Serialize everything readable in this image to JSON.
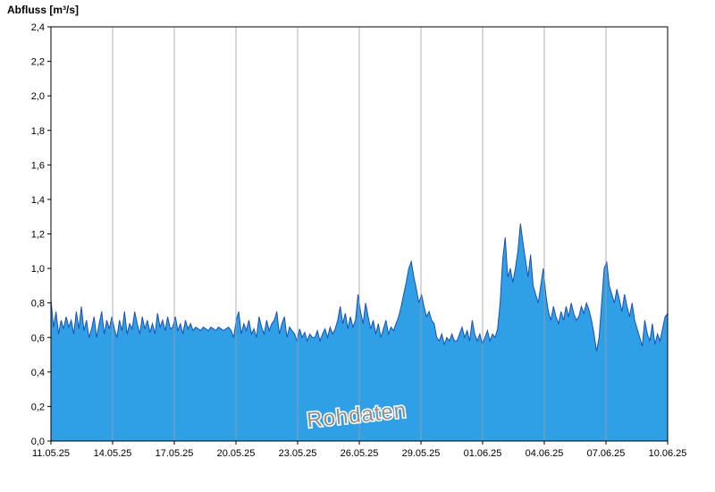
{
  "title": "Abfluss [m³/s]",
  "watermark": "Rohdaten",
  "colors": {
    "area_fill": "#2f9fe6",
    "line": "#1c4fb4",
    "grid": "#a0a0a0",
    "axis": "#000000",
    "tick_text": "#000000",
    "watermark_fill": "#8f8f8f",
    "watermark_halo": "#ffffff",
    "plot_bg": "#ffffff"
  },
  "chart_data": {
    "type": "area",
    "title": "Abfluss [m³/s]",
    "xlabel": "",
    "ylabel": "Abfluss [m³/s]",
    "ylim": [
      0,
      2.4
    ],
    "y_tick_step": 0.2,
    "y_tick_labels": [
      "0,0",
      "0,2",
      "0,4",
      "0,6",
      "0,8",
      "1,0",
      "1,2",
      "1,4",
      "1,6",
      "1,8",
      "2,0",
      "2,2",
      "2,4"
    ],
    "x_tick_labels": [
      "11.05.25",
      "14.05.25",
      "17.05.25",
      "20.05.25",
      "23.05.25",
      "26.05.25",
      "29.05.25",
      "01.06.25",
      "04.06.25",
      "07.06.25",
      "10.06.25"
    ],
    "x_tick_days": [
      0,
      3,
      6,
      9,
      12,
      15,
      18,
      21,
      24,
      27,
      30
    ],
    "x_range_days": [
      0,
      30
    ],
    "grid": "vertical-only",
    "legend": "none",
    "annotation": "Rohdaten",
    "values": [
      0.82,
      0.66,
      0.75,
      0.62,
      0.7,
      0.65,
      0.72,
      0.66,
      0.7,
      0.62,
      0.75,
      0.65,
      0.78,
      0.64,
      0.7,
      0.6,
      0.65,
      0.72,
      0.6,
      0.68,
      0.75,
      0.62,
      0.7,
      0.65,
      0.72,
      0.65,
      0.6,
      0.7,
      0.64,
      0.75,
      0.62,
      0.68,
      0.65,
      0.75,
      0.68,
      0.62,
      0.72,
      0.65,
      0.7,
      0.63,
      0.68,
      0.62,
      0.74,
      0.66,
      0.7,
      0.64,
      0.72,
      0.65,
      0.66,
      0.72,
      0.64,
      0.68,
      0.62,
      0.7,
      0.65,
      0.68,
      0.64,
      0.66,
      0.65,
      0.64,
      0.66,
      0.65,
      0.64,
      0.66,
      0.65,
      0.64,
      0.66,
      0.65,
      0.64,
      0.65,
      0.66,
      0.64,
      0.6,
      0.7,
      0.75,
      0.62,
      0.68,
      0.64,
      0.7,
      0.62,
      0.65,
      0.6,
      0.72,
      0.66,
      0.62,
      0.7,
      0.64,
      0.68,
      0.7,
      0.75,
      0.62,
      0.68,
      0.72,
      0.6,
      0.66,
      0.64,
      0.62,
      0.58,
      0.65,
      0.6,
      0.63,
      0.58,
      0.62,
      0.6,
      0.6,
      0.64,
      0.58,
      0.62,
      0.65,
      0.6,
      0.66,
      0.62,
      0.65,
      0.7,
      0.78,
      0.68,
      0.74,
      0.65,
      0.72,
      0.66,
      0.7,
      0.85,
      0.75,
      0.68,
      0.8,
      0.72,
      0.65,
      0.7,
      0.62,
      0.68,
      0.6,
      0.65,
      0.7,
      0.62,
      0.66,
      0.64,
      0.68,
      0.72,
      0.78,
      0.85,
      0.92,
      1.0,
      1.04,
      0.95,
      0.88,
      0.8,
      0.85,
      0.78,
      0.72,
      0.75,
      0.7,
      0.68,
      0.6,
      0.58,
      0.62,
      0.56,
      0.6,
      0.58,
      0.62,
      0.58,
      0.58,
      0.62,
      0.66,
      0.6,
      0.64,
      0.58,
      0.7,
      0.62,
      0.58,
      0.62,
      0.56,
      0.6,
      0.64,
      0.58,
      0.62,
      0.6,
      0.65,
      0.8,
      1.05,
      1.18,
      0.95,
      1.0,
      0.92,
      1.0,
      1.1,
      1.26,
      1.15,
      1.05,
      0.95,
      1.08,
      0.9,
      0.85,
      0.8,
      0.9,
      1.0,
      0.85,
      0.75,
      0.7,
      0.78,
      0.72,
      0.68,
      0.75,
      0.7,
      0.78,
      0.72,
      0.8,
      0.74,
      0.7,
      0.72,
      0.78,
      0.74,
      0.8,
      0.76,
      0.7,
      0.62,
      0.52,
      0.6,
      0.8,
      1.0,
      1.04,
      0.9,
      0.85,
      0.8,
      0.88,
      0.82,
      0.75,
      0.85,
      0.78,
      0.72,
      0.8,
      0.7,
      0.65,
      0.6,
      0.55,
      0.7,
      0.62,
      0.58,
      0.68,
      0.56,
      0.62,
      0.58,
      0.65,
      0.72,
      0.74
    ]
  }
}
